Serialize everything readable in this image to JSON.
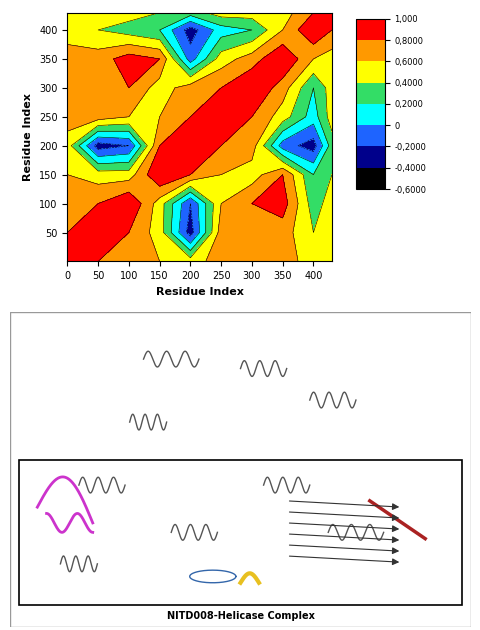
{
  "chart_data": {
    "type": "contour",
    "xlabel": "Residue Index",
    "ylabel": "Residue Index",
    "x": [
      0,
      50,
      100,
      150,
      200,
      250,
      300,
      350,
      400,
      430
    ],
    "y": [
      0,
      50,
      100,
      150,
      200,
      250,
      300,
      350,
      400,
      430
    ],
    "cells": [
      [
        1.0,
        0.8,
        0.7,
        0.6,
        0.5,
        0.7,
        0.6,
        0.7,
        0.5,
        0.4
      ],
      [
        0.8,
        1.0,
        0.8,
        0.5,
        -0.3,
        0.7,
        0.8,
        0.7,
        0.4,
        0.5
      ],
      [
        0.7,
        0.8,
        1.0,
        0.5,
        -0.2,
        0.6,
        0.8,
        0.9,
        0.3,
        0.5
      ],
      [
        0.6,
        0.5,
        0.5,
        1.0,
        0.8,
        0.6,
        0.5,
        0.8,
        0.2,
        0.4
      ],
      [
        0.5,
        -0.3,
        -0.2,
        0.8,
        1.0,
        0.8,
        0.7,
        -0.1,
        -0.3,
        0.3
      ],
      [
        0.7,
        0.7,
        0.6,
        0.6,
        0.8,
        1.0,
        0.8,
        0.5,
        0.1,
        0.5
      ],
      [
        0.6,
        0.8,
        0.8,
        0.5,
        0.7,
        0.8,
        1.0,
        0.7,
        0.2,
        0.5
      ],
      [
        0.7,
        0.7,
        0.9,
        0.8,
        -0.1,
        0.5,
        0.7,
        1.0,
        0.6,
        0.5
      ],
      [
        0.5,
        0.4,
        0.3,
        0.2,
        -0.3,
        0.1,
        0.2,
        0.6,
        1.0,
        0.8
      ],
      [
        0.4,
        0.5,
        0.5,
        0.4,
        0.3,
        0.5,
        0.5,
        0.5,
        0.8,
        1.0
      ]
    ],
    "xlim": [
      0,
      430
    ],
    "ylim": [
      0,
      430
    ],
    "xticks": [
      0,
      50,
      100,
      150,
      200,
      250,
      300,
      350,
      400
    ],
    "yticks": [
      50,
      100,
      150,
      200,
      250,
      300,
      350,
      400
    ],
    "colors": [
      "#000000",
      "#00008b",
      "#1e64ff",
      "#00ffff",
      "#33dd66",
      "#ffff00",
      "#ff9900",
      "#ff0000"
    ],
    "colorbar": {
      "range": [
        -0.6,
        1.0
      ],
      "ticks": [
        {
          "value": 1.0,
          "label": "1,000"
        },
        {
          "value": 0.8,
          "label": "0,8000"
        },
        {
          "value": 0.6,
          "label": "0,6000"
        },
        {
          "value": 0.4,
          "label": "0,4000"
        },
        {
          "value": 0.2,
          "label": "0,2000"
        },
        0,
        {
          "value": -0.2,
          "label": "-0,2000"
        },
        {
          "value": -0.4,
          "label": "-0,4000"
        },
        {
          "value": -0.6,
          "label": "-0,6000"
        }
      ]
    }
  },
  "panel": {
    "caption": "NITD008-Helicase Complex"
  }
}
